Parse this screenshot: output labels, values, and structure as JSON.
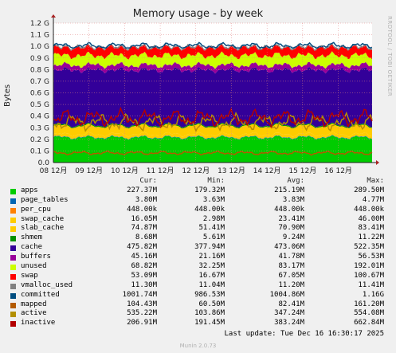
{
  "chart_data": {
    "type": "area",
    "title": "Memory usage - by week",
    "ylabel": "Bytes",
    "ylim": [
      0,
      1200000000
    ],
    "y_ticks": [
      "0.0",
      "0.1 G",
      "0.2 G",
      "0.3 G",
      "0.4 G",
      "0.5 G",
      "0.6 G",
      "0.7 G",
      "0.8 G",
      "0.9 G",
      "1.0 G",
      "1.1 G",
      "1.2 G"
    ],
    "x_ticks": [
      "08 12月",
      "09 12月",
      "10 12月",
      "11 12月",
      "12 12月",
      "13 12月",
      "14 12月",
      "15 12月",
      "16 12月"
    ],
    "grid": true,
    "legend_headers": {
      "cur": "Cur:",
      "min": "Min:",
      "avg": "Avg:",
      "max": "Max:"
    },
    "series": [
      {
        "name": "apps",
        "color": "#00cc00",
        "cur": "227.37M",
        "min": "179.32M",
        "avg": "215.19M",
        "max": "289.50M"
      },
      {
        "name": "page_tables",
        "color": "#0066b3",
        "cur": "3.80M",
        "min": "3.63M",
        "avg": "3.83M",
        "max": "4.77M"
      },
      {
        "name": "per_cpu",
        "color": "#ff8000",
        "cur": "448.00k",
        "min": "448.00k",
        "avg": "448.00k",
        "max": "448.00k"
      },
      {
        "name": "swap_cache",
        "color": "#ffcc00",
        "cur": "16.05M",
        "min": "2.98M",
        "avg": "23.41M",
        "max": "46.00M"
      },
      {
        "name": "slab_cache",
        "color": "#ffcc00",
        "cur": "74.87M",
        "min": "51.41M",
        "avg": "70.90M",
        "max": "83.41M"
      },
      {
        "name": "shmem",
        "color": "#008f00",
        "cur": "8.68M",
        "min": "5.61M",
        "avg": "9.24M",
        "max": "11.22M"
      },
      {
        "name": "cache",
        "color": "#330099",
        "cur": "475.82M",
        "min": "377.94M",
        "avg": "473.06M",
        "max": "522.35M"
      },
      {
        "name": "buffers",
        "color": "#990099",
        "cur": "45.16M",
        "min": "21.16M",
        "avg": "41.78M",
        "max": "56.53M"
      },
      {
        "name": "unused",
        "color": "#ccff00",
        "cur": "68.82M",
        "min": "32.25M",
        "avg": "83.17M",
        "max": "192.01M"
      },
      {
        "name": "swap",
        "color": "#ff0000",
        "cur": "53.09M",
        "min": "16.67M",
        "avg": "67.05M",
        "max": "100.67M"
      },
      {
        "name": "vmalloc_used",
        "color": "#808080",
        "cur": "11.30M",
        "min": "11.04M",
        "avg": "11.20M",
        "max": "11.41M"
      },
      {
        "name": "committed",
        "color": "#004d80",
        "cur": "1001.74M",
        "min": "986.53M",
        "avg": "1004.86M",
        "max": "1.16G"
      },
      {
        "name": "mapped",
        "color": "#b35a00",
        "cur": "104.43M",
        "min": "60.50M",
        "avg": "82.41M",
        "max": "161.20M"
      },
      {
        "name": "active",
        "color": "#b38f00",
        "cur": "535.22M",
        "min": "103.86M",
        "avg": "347.24M",
        "max": "554.08M"
      },
      {
        "name": "inactive",
        "color": "#b30000",
        "cur": "206.91M",
        "min": "191.45M",
        "avg": "383.24M",
        "max": "662.84M"
      }
    ]
  },
  "side_text": "RRDTOOL / TOBI OETIKER",
  "last_update": "Last update: Tue Dec 16 16:30:17 2025",
  "footer": "Munin 2.0.73"
}
